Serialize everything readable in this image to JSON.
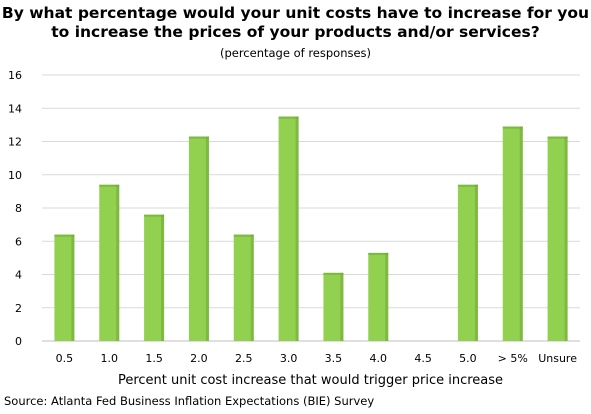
{
  "chart_data": {
    "type": "bar",
    "title_line1": "By what percentage would your unit costs have to increase for you",
    "title_line2": "to increase the prices of your products and/or services?",
    "subtitle": "(percentage of responses)",
    "xlabel": "Percent unit cost increase that would  trigger price increase",
    "ylabel": "",
    "categories": [
      "0.5",
      "1.0",
      "1.5",
      "2.0",
      "2.5",
      "3.0",
      "3.5",
      "4.0",
      "4.5",
      "5.0",
      "> 5%",
      "Unsure"
    ],
    "values": [
      6.4,
      9.4,
      7.6,
      12.3,
      6.4,
      13.5,
      4.1,
      5.3,
      0,
      9.4,
      12.9,
      12.3
    ],
    "ylim": [
      0,
      16
    ],
    "yticks": [
      0,
      2,
      4,
      6,
      8,
      10,
      12,
      14,
      16
    ],
    "grid": true,
    "legend": "none",
    "bar_color": "#92d050",
    "bar_edge_color": "#6ea634"
  },
  "source": "Source: Atlanta Fed Business Inflation Expectations (BIE) Survey"
}
